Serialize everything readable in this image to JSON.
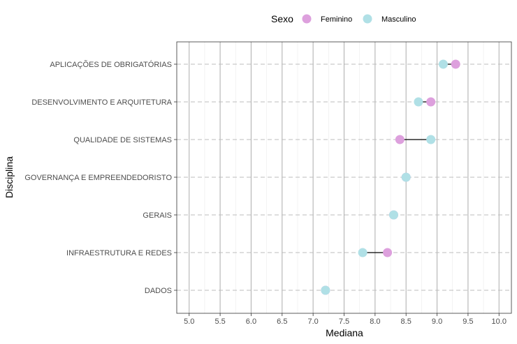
{
  "chart_data": {
    "type": "dumbbell",
    "title": "",
    "xlabel": "Mediana",
    "ylabel": "Disciplina",
    "xlim": [
      4.8,
      10.2
    ],
    "x_ticks": [
      "5.0",
      "5.5",
      "6.0",
      "6.5",
      "7.0",
      "7.5",
      "8.0",
      "8.5",
      "9.0",
      "9.5",
      "10.0"
    ],
    "categories": [
      "APLICAÇÕES DE OBRIGATÓRIAS",
      "DESENVOLVIMENTO E ARQUITETURA",
      "QUALIDADE DE SISTEMAS",
      "GOVERNANÇA E EMPREENDEDORISTO",
      "GERAIS",
      "INFRAESTRUTURA E REDES",
      "DADOS"
    ],
    "legend": {
      "title": "Sexo",
      "position": "top",
      "entries": [
        {
          "label": "Feminino",
          "color": "#dda0dd"
        },
        {
          "label": "Masculino",
          "color": "#b0e0e6"
        }
      ]
    },
    "series": [
      {
        "name": "Feminino",
        "color": "#dda0dd",
        "values": [
          9.3,
          8.9,
          8.4,
          8.5,
          8.3,
          8.2,
          7.2
        ]
      },
      {
        "name": "Masculino",
        "color": "#b0e0e6",
        "values": [
          9.1,
          8.7,
          8.9,
          8.5,
          8.3,
          7.8,
          7.2
        ]
      }
    ],
    "grid": true
  }
}
